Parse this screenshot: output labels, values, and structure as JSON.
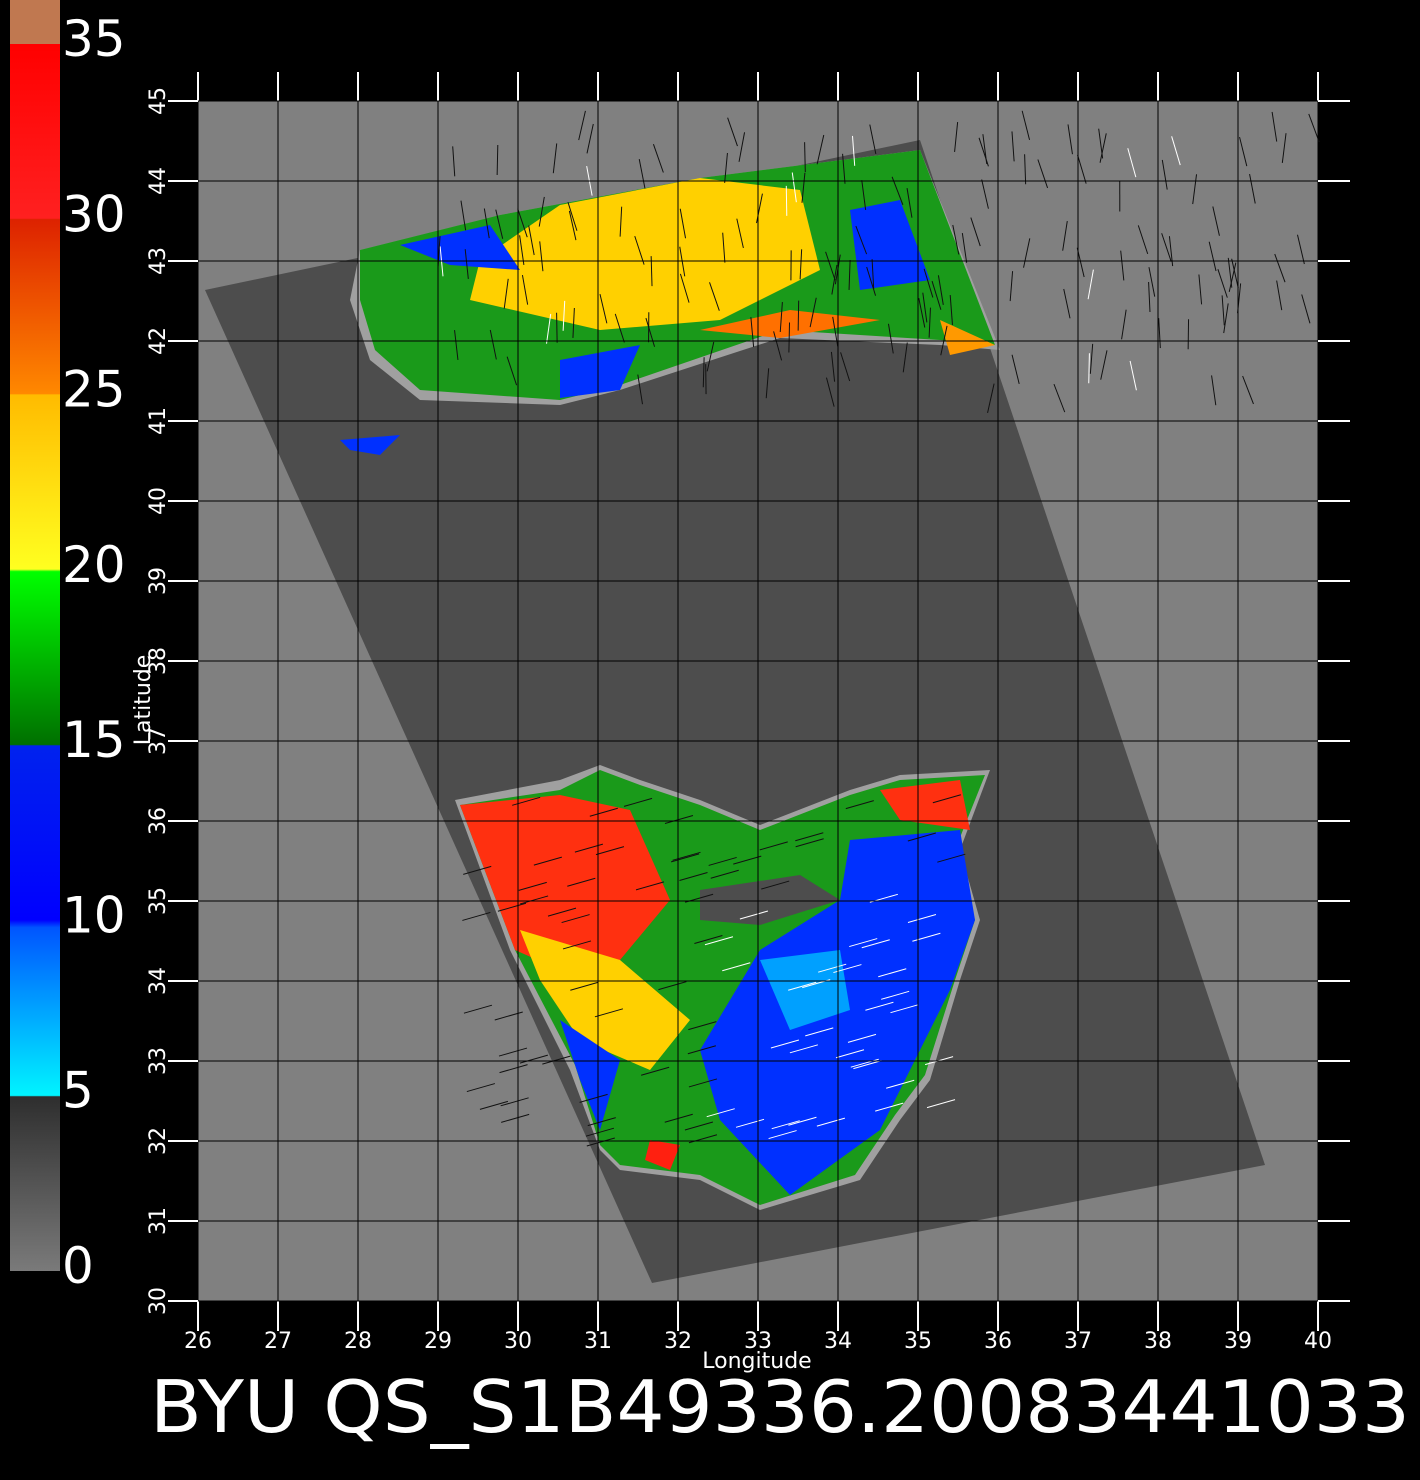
{
  "map": {
    "title": "BYU QS_S1B49336.20083441033",
    "x_label": "Longitude",
    "y_label": "Latitude",
    "xlim": [
      26,
      40
    ],
    "ylim": [
      30,
      45
    ],
    "xticks": [
      26,
      27,
      28,
      29,
      30,
      31,
      32,
      33,
      34,
      35,
      36,
      37,
      38,
      39,
      40
    ],
    "yticks": [
      30,
      31,
      32,
      33,
      34,
      35,
      36,
      37,
      38,
      39,
      40,
      41,
      42,
      43,
      44,
      45
    ]
  },
  "colorbar": {
    "lim": [
      0,
      35
    ],
    "ticks": [
      0,
      5,
      10,
      15,
      20,
      25,
      30,
      35
    ]
  }
}
